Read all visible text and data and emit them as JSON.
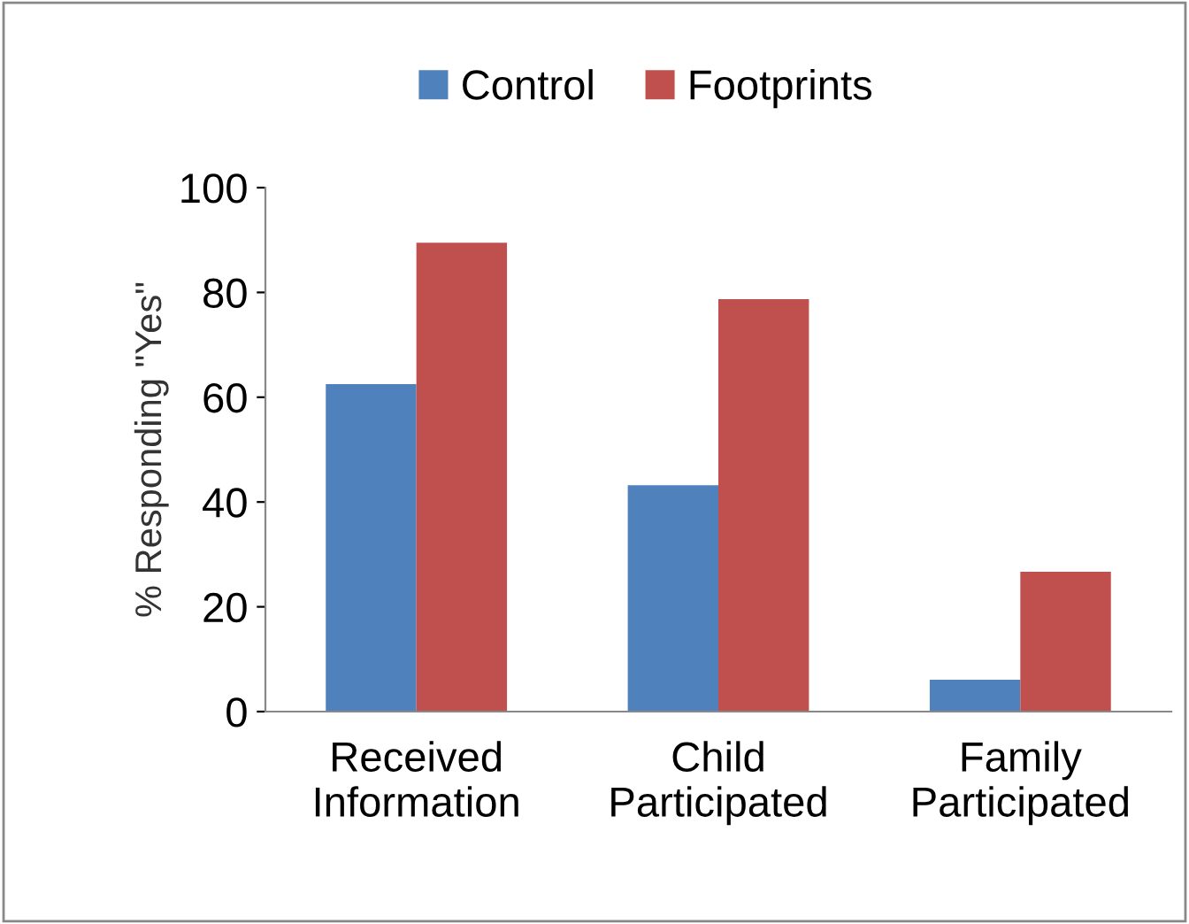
{
  "chart_data": {
    "type": "bar",
    "ylabel": "% Responding \"Yes\"",
    "categories": [
      "Received\nInformation",
      "Child\nParticipated",
      "Family\nParticipated"
    ],
    "series": [
      {
        "name": "Control",
        "color": "#4f81bd",
        "values": [
          62.5,
          43.2,
          6.1
        ]
      },
      {
        "name": "Footprints",
        "color": "#c0504d",
        "values": [
          89.5,
          78.7,
          26.7
        ]
      }
    ],
    "ylim": [
      0,
      100
    ],
    "yticks": [
      0,
      20,
      40,
      60,
      80,
      100
    ],
    "grid": false,
    "legend": "top"
  }
}
